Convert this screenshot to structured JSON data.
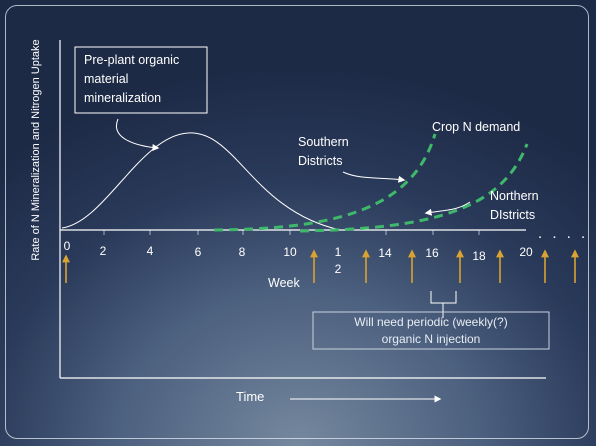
{
  "slide": {
    "colors": {
      "background_dark": "#1d2a46",
      "background_light": "#75889e",
      "axis": "#ffffff",
      "mineralization_curve": "#ffffff",
      "demand_curve": "#3fb86b",
      "injection_arrow": "#d9a232"
    },
    "y_axis_label": "Rate of N Mineralization and Nitrogen Uptake",
    "x_axis_label": "Time",
    "week_axis": {
      "label": "Week",
      "ticks": [
        "0",
        "2",
        "4",
        "6",
        "8",
        "10",
        "12",
        "14",
        "16",
        "18",
        "20"
      ],
      "continuation": ". . . ."
    },
    "preplant_callout": {
      "lines": [
        "Pre-plant organic",
        "material",
        "mineralization"
      ]
    },
    "southern_label": {
      "lines": [
        "Southern",
        "Districts"
      ]
    },
    "crop_demand_label": "Crop N demand",
    "northern_label": {
      "lines": [
        "Northern",
        "DIstricts"
      ]
    },
    "injection_note": {
      "lines": [
        "Will need periodic (weekly(?)",
        "organic N injection"
      ]
    },
    "icons": {
      "injection_marker": "up-arrow-icon",
      "time_direction": "right-arrow-icon"
    }
  }
}
